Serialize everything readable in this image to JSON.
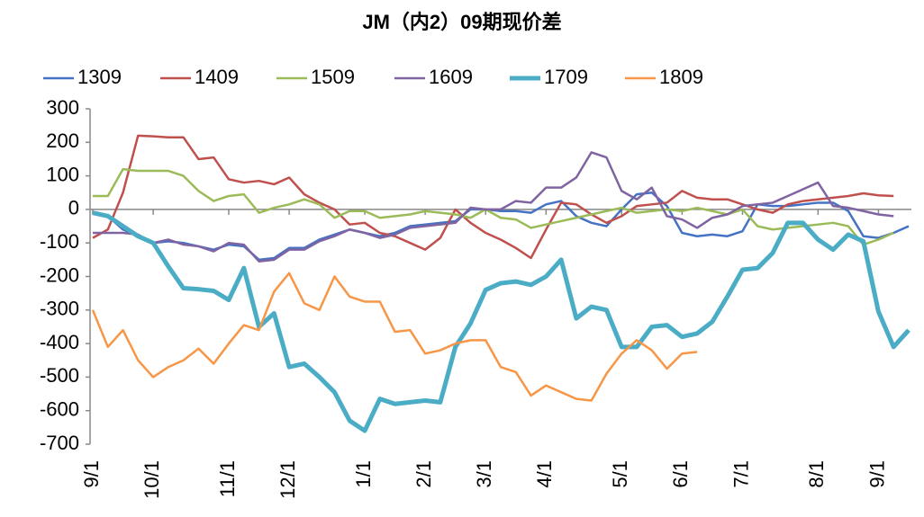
{
  "chart_data": {
    "type": "line",
    "title": "JM（内2）09期现价差",
    "categories": [
      "9/1",
      null,
      null,
      null,
      "10/1",
      null,
      null,
      null,
      null,
      "11/1",
      null,
      null,
      null,
      "12/1",
      null,
      null,
      null,
      null,
      "1/1",
      null,
      null,
      null,
      "2/1",
      null,
      null,
      null,
      "3/1",
      null,
      null,
      null,
      "4/1",
      null,
      null,
      null,
      null,
      "5/1",
      null,
      null,
      null,
      "6/1",
      null,
      null,
      null,
      "7/1",
      null,
      null,
      null,
      null,
      "8/1",
      null,
      null,
      null,
      "9/1",
      null,
      null
    ],
    "series": [
      {
        "name": "1309",
        "color": "#4472c4",
        "width": 2.5,
        "values": [
          -10,
          -20,
          -60,
          -80,
          -100,
          -95,
          -100,
          -110,
          -120,
          -105,
          -110,
          -150,
          -145,
          -115,
          -115,
          -90,
          -75,
          -60,
          -70,
          -80,
          -70,
          -50,
          -45,
          -40,
          -35,
          0,
          0,
          -5,
          -5,
          -10,
          15,
          25,
          -20,
          -40,
          -50,
          0,
          45,
          50,
          10,
          -70,
          -80,
          -75,
          -80,
          -65,
          15,
          10,
          10,
          15,
          20,
          20,
          -5,
          -80,
          -85,
          -70,
          -50
        ]
      },
      {
        "name": "1409",
        "color": "#c0504d",
        "width": 2.5,
        "values": [
          -85,
          -60,
          50,
          220,
          218,
          215,
          215,
          150,
          155,
          90,
          80,
          85,
          75,
          95,
          45,
          20,
          0,
          -45,
          -40,
          -70,
          -80,
          -100,
          -120,
          -85,
          0,
          -40,
          -70,
          -90,
          -115,
          -145,
          -60,
          20,
          15,
          -15,
          -40,
          -20,
          10,
          15,
          20,
          55,
          35,
          30,
          30,
          15,
          0,
          -10,
          15,
          25,
          30,
          35,
          40,
          48,
          42,
          40,
          null
        ]
      },
      {
        "name": "1509",
        "color": "#9bbb59",
        "width": 2.5,
        "values": [
          40,
          40,
          120,
          115,
          115,
          115,
          100,
          55,
          25,
          40,
          45,
          -10,
          5,
          15,
          30,
          15,
          -25,
          -5,
          -5,
          -25,
          -20,
          -15,
          -5,
          -10,
          -15,
          -25,
          0,
          -25,
          -30,
          -55,
          -45,
          -35,
          -25,
          -15,
          -5,
          5,
          -10,
          -5,
          0,
          -5,
          5,
          -5,
          -15,
          0,
          -50,
          -60,
          -55,
          -50,
          -45,
          -40,
          -50,
          -105,
          -90,
          -70,
          null
        ]
      },
      {
        "name": "1609",
        "color": "#8064a2",
        "width": 2.5,
        "values": [
          -70,
          -70,
          -70,
          -75,
          -100,
          -90,
          -105,
          -110,
          -125,
          -100,
          -105,
          -155,
          -150,
          -120,
          -120,
          -95,
          -80,
          -60,
          -70,
          -85,
          -75,
          -55,
          -50,
          -45,
          -40,
          5,
          0,
          0,
          25,
          20,
          65,
          65,
          95,
          170,
          155,
          55,
          30,
          65,
          -20,
          -30,
          -55,
          -25,
          -15,
          10,
          15,
          20,
          40,
          60,
          80,
          10,
          5,
          -5,
          -15,
          -20,
          null
        ]
      },
      {
        "name": "1709",
        "color": "#4bacc6",
        "width": 5,
        "values": [
          -10,
          -20,
          -50,
          -80,
          -100,
          -170,
          -235,
          -238,
          -243,
          -270,
          -175,
          -350,
          -310,
          -470,
          -460,
          -500,
          -545,
          -630,
          -660,
          -565,
          -580,
          -575,
          -570,
          -575,
          -410,
          -340,
          -240,
          -220,
          -215,
          -225,
          -200,
          -150,
          -325,
          -290,
          -300,
          -410,
          -410,
          -350,
          -345,
          -380,
          -370,
          -335,
          -260,
          -180,
          -175,
          -130,
          -40,
          -40,
          -90,
          -120,
          -75,
          -95,
          -305,
          -410,
          -360
        ]
      },
      {
        "name": "1809",
        "color": "#f79646",
        "width": 2.5,
        "values": [
          -300,
          -410,
          -360,
          -450,
          -500,
          -470,
          -450,
          -415,
          -460,
          -400,
          -345,
          -360,
          -245,
          -190,
          -280,
          -300,
          -200,
          -260,
          -275,
          -275,
          -365,
          -360,
          -430,
          -420,
          -400,
          -390,
          -390,
          -470,
          -485,
          -555,
          -525,
          -545,
          -565,
          -570,
          -490,
          -430,
          -390,
          -420,
          -475,
          -430,
          -425,
          null,
          null,
          null,
          null,
          null,
          null,
          null,
          null,
          null,
          null,
          null,
          null,
          null,
          null
        ]
      }
    ],
    "ylim": [
      -700,
      300
    ],
    "yticks": [
      -700,
      -600,
      -500,
      -400,
      -300,
      -200,
      -100,
      0,
      100,
      200,
      300
    ],
    "grid": false,
    "legend": "top"
  }
}
